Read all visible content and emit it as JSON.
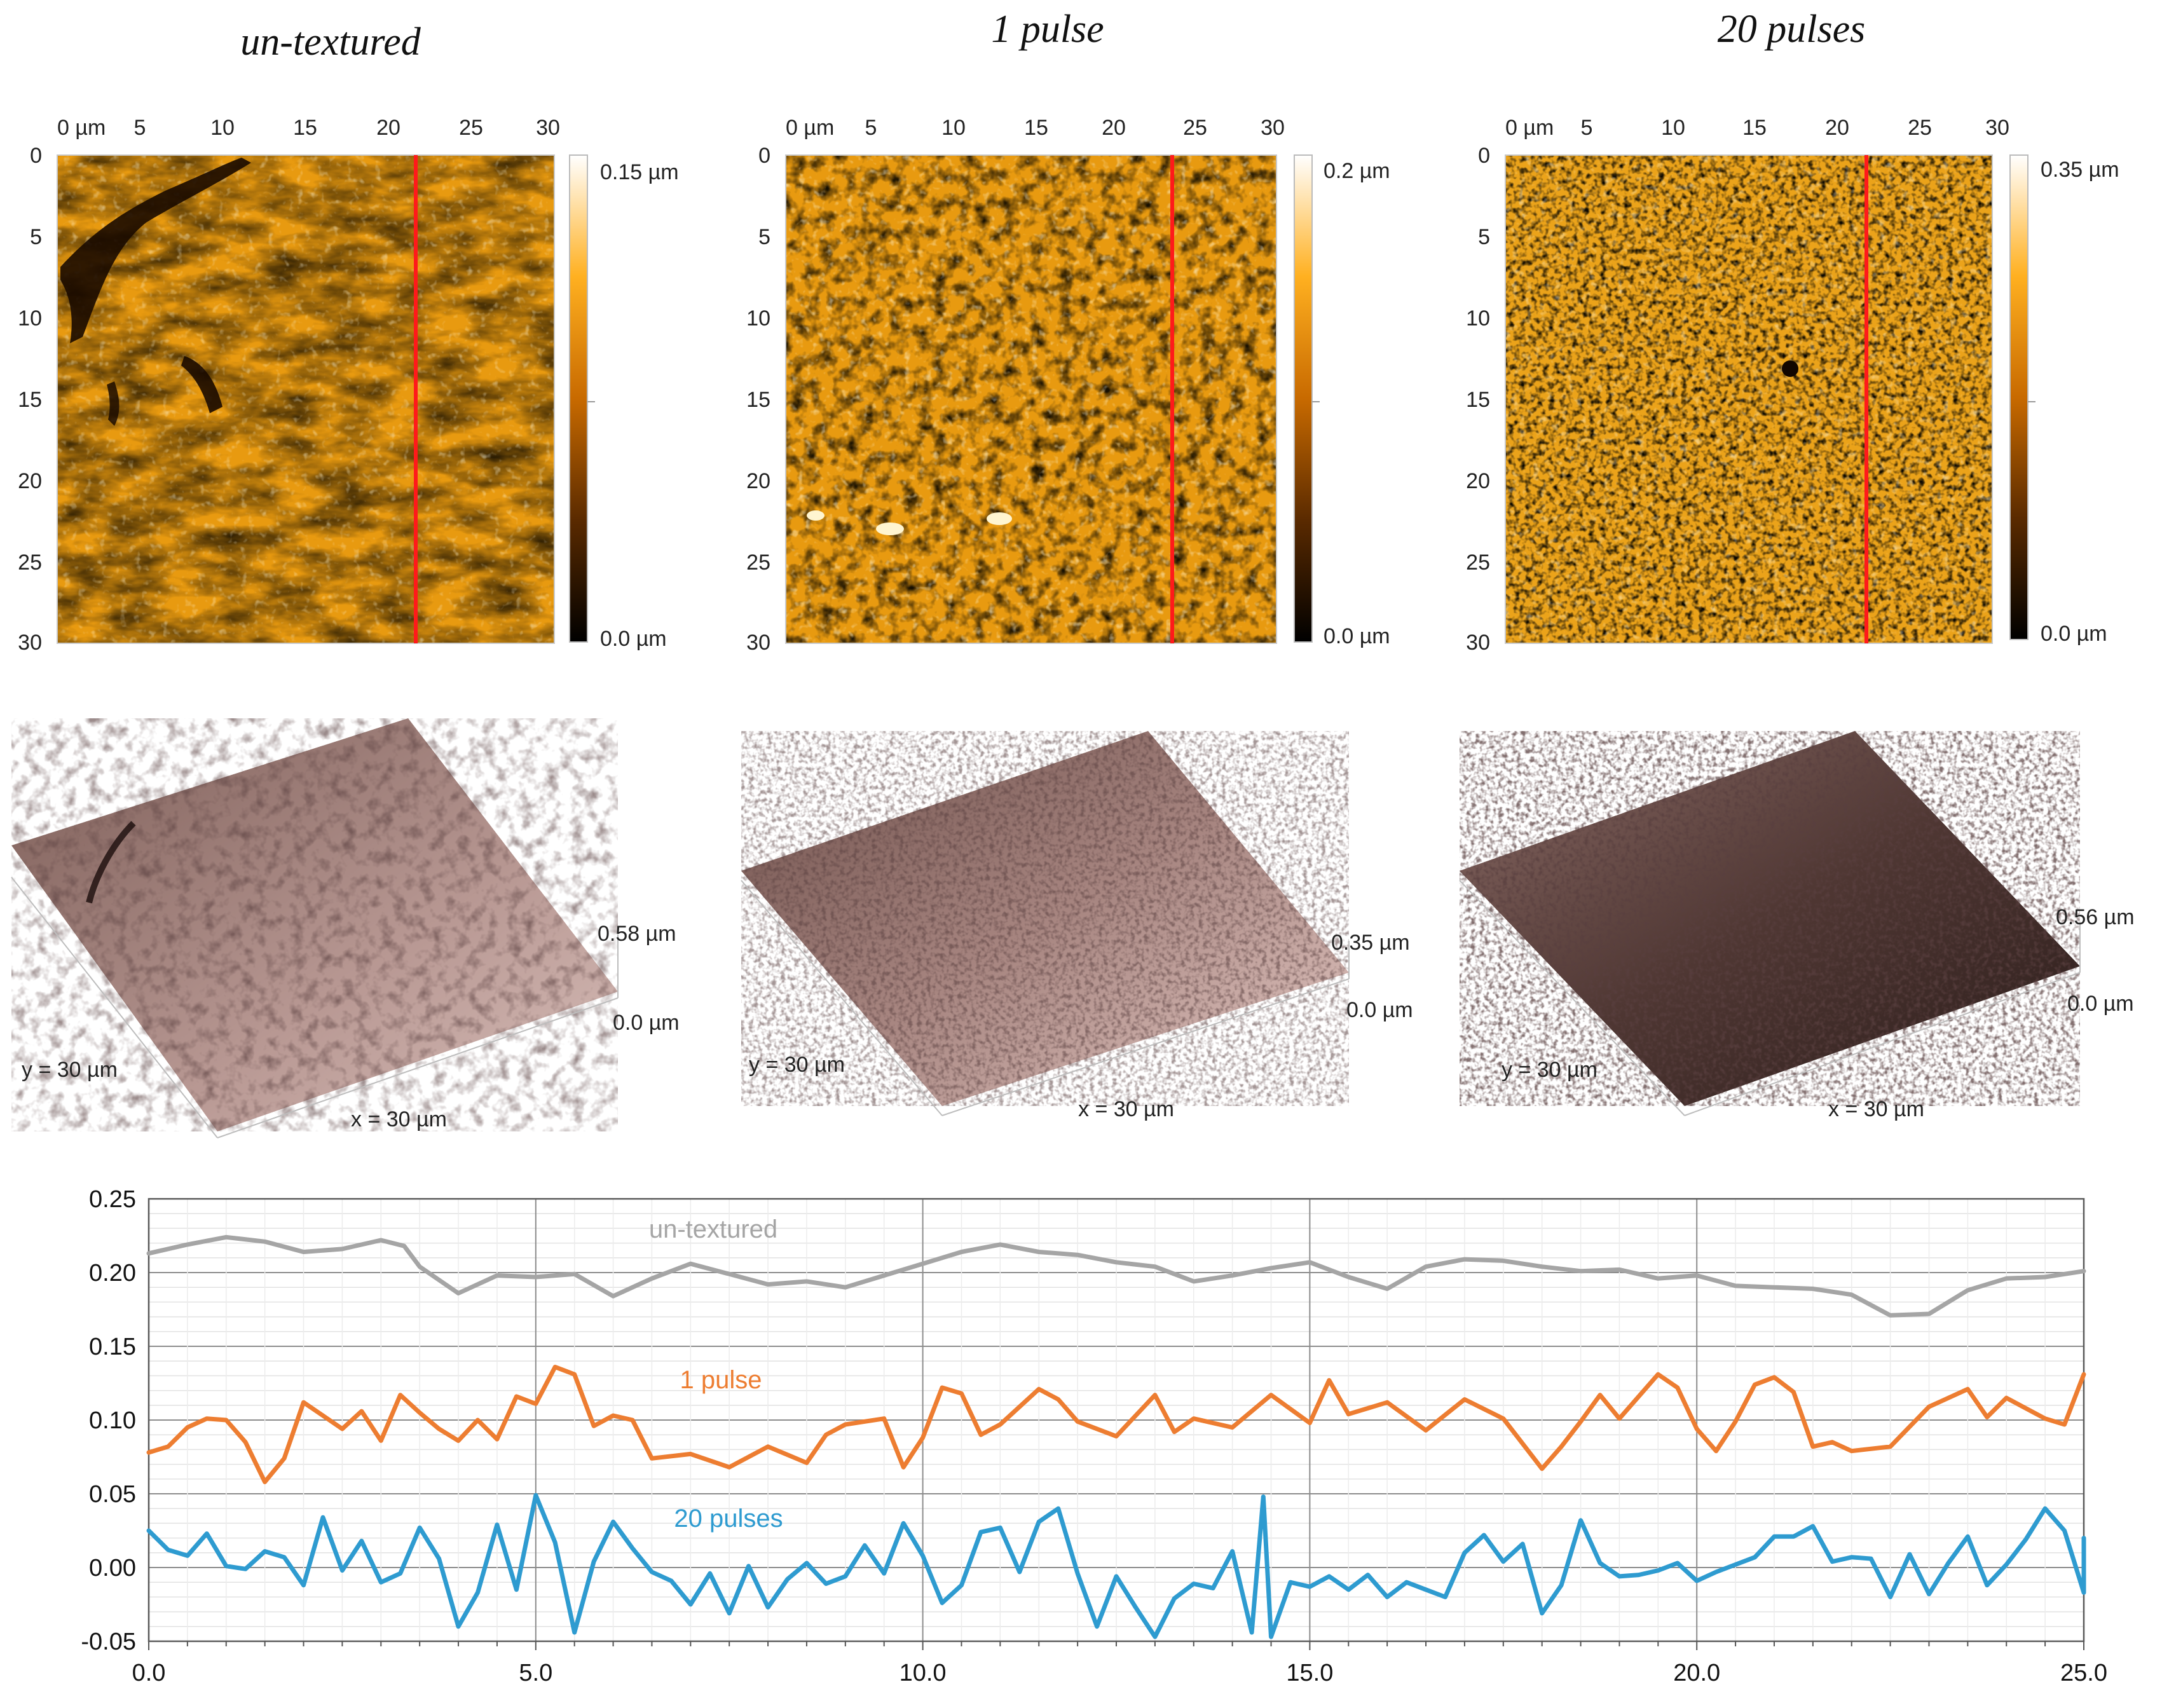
{
  "titles": [
    "un-textured",
    "1 pulse",
    "20 pulses"
  ],
  "afm_maps": [
    {
      "name": "un-textured",
      "x_ticks": [
        "0 µm",
        "5",
        "10",
        "15",
        "20",
        "25",
        "30"
      ],
      "y_ticks": [
        "0",
        "5",
        "10",
        "15",
        "20",
        "25",
        "30"
      ],
      "scale_max": "0.15 µm",
      "scale_min": "0.0 µm",
      "profile_line_x_um": 21.8
    },
    {
      "name": "1 pulse",
      "x_ticks": [
        "0 µm",
        "5",
        "10",
        "15",
        "20",
        "25",
        "30"
      ],
      "y_ticks": [
        "0",
        "5",
        "10",
        "15",
        "20",
        "25",
        "30"
      ],
      "scale_max": "0.2 µm",
      "scale_min": "0.0 µm",
      "profile_line_x_um": 23.5
    },
    {
      "name": "20 pulses",
      "x_ticks": [
        "0 µm",
        "5",
        "10",
        "15",
        "20",
        "25",
        "30"
      ],
      "y_ticks": [
        "0",
        "5",
        "10",
        "15",
        "20",
        "25",
        "30"
      ],
      "scale_max": "0.35 µm",
      "scale_min": "0.0 µm",
      "profile_line_x_um": 21.8
    }
  ],
  "views_3d": [
    {
      "name": "un-textured",
      "z_max": "0.58 µm",
      "z_min": "0.0 µm",
      "y_label": "y = 30 µm",
      "x_label": "x = 30 µm"
    },
    {
      "name": "1 pulse",
      "z_max": "0.35 µm",
      "z_min": "0.0 µm",
      "y_label": "y = 30 µm",
      "x_label": "x = 30 µm"
    },
    {
      "name": "20 pulses",
      "z_max": "0.56 µm",
      "z_min": "0.0 µm",
      "y_label": "y = 30 µm",
      "x_label": "x = 30 µm"
    }
  ],
  "colors": {
    "untextured": "#a5a5a5",
    "pulse1": "#ed7d31",
    "pulse20": "#2e9bd0",
    "profile_line": "#ff1a1a"
  },
  "chart_data": {
    "type": "line",
    "title": "",
    "xlabel": "",
    "ylabel": "",
    "xlim": [
      0,
      25
    ],
    "ylim": [
      -0.05,
      0.25
    ],
    "x_ticks": [
      "0.0",
      "5.0",
      "10.0",
      "15.0",
      "20.0",
      "25.0"
    ],
    "y_ticks": [
      "-0.05",
      "0.00",
      "0.05",
      "0.10",
      "0.15",
      "0.20",
      "0.25"
    ],
    "series": [
      {
        "name": "un-textured",
        "label": "un-textured",
        "color": "#a5a5a5",
        "points": [
          [
            0,
            0.213
          ],
          [
            0.5,
            0.219
          ],
          [
            1,
            0.224
          ],
          [
            1.5,
            0.221
          ],
          [
            2,
            0.214
          ],
          [
            2.5,
            0.216
          ],
          [
            3,
            0.222
          ],
          [
            3.3,
            0.218
          ],
          [
            3.5,
            0.204
          ],
          [
            4,
            0.186
          ],
          [
            4.5,
            0.198
          ],
          [
            5,
            0.197
          ],
          [
            5.5,
            0.199
          ],
          [
            6,
            0.184
          ],
          [
            6.5,
            0.196
          ],
          [
            7,
            0.206
          ],
          [
            7.5,
            0.199
          ],
          [
            8,
            0.192
          ],
          [
            8.5,
            0.194
          ],
          [
            9,
            0.19
          ],
          [
            9.5,
            0.198
          ],
          [
            10,
            0.206
          ],
          [
            10.5,
            0.214
          ],
          [
            11,
            0.219
          ],
          [
            11.5,
            0.214
          ],
          [
            12,
            0.212
          ],
          [
            12.5,
            0.207
          ],
          [
            13,
            0.204
          ],
          [
            13.5,
            0.194
          ],
          [
            14,
            0.198
          ],
          [
            14.5,
            0.203
          ],
          [
            15,
            0.207
          ],
          [
            15.5,
            0.197
          ],
          [
            16,
            0.189
          ],
          [
            16.5,
            0.204
          ],
          [
            17,
            0.209
          ],
          [
            17.5,
            0.208
          ],
          [
            18,
            0.204
          ],
          [
            18.5,
            0.201
          ],
          [
            19,
            0.202
          ],
          [
            19.5,
            0.196
          ],
          [
            20,
            0.198
          ],
          [
            20.5,
            0.191
          ],
          [
            21,
            0.19
          ],
          [
            21.5,
            0.189
          ],
          [
            22,
            0.185
          ],
          [
            22.5,
            0.171
          ],
          [
            23,
            0.172
          ],
          [
            23.5,
            0.188
          ],
          [
            24,
            0.196
          ],
          [
            24.5,
            0.197
          ],
          [
            25,
            0.201
          ]
        ]
      },
      {
        "name": "1 pulse",
        "label": "1 pulse",
        "color": "#ed7d31",
        "points": [
          [
            0,
            0.078
          ],
          [
            0.25,
            0.082
          ],
          [
            0.5,
            0.095
          ],
          [
            0.75,
            0.101
          ],
          [
            1,
            0.1
          ],
          [
            1.25,
            0.085
          ],
          [
            1.5,
            0.058
          ],
          [
            1.75,
            0.074
          ],
          [
            2,
            0.112
          ],
          [
            2.25,
            0.103
          ],
          [
            2.5,
            0.094
          ],
          [
            2.75,
            0.106
          ],
          [
            3,
            0.086
          ],
          [
            3.25,
            0.117
          ],
          [
            3.5,
            0.105
          ],
          [
            3.75,
            0.094
          ],
          [
            4,
            0.086
          ],
          [
            4.25,
            0.1
          ],
          [
            4.5,
            0.087
          ],
          [
            4.75,
            0.116
          ],
          [
            5,
            0.111
          ],
          [
            5.25,
            0.136
          ],
          [
            5.5,
            0.131
          ],
          [
            5.75,
            0.096
          ],
          [
            6,
            0.103
          ],
          [
            6.25,
            0.1
          ],
          [
            6.5,
            0.074
          ],
          [
            7,
            0.077
          ],
          [
            7.5,
            0.068
          ],
          [
            8,
            0.082
          ],
          [
            8.5,
            0.071
          ],
          [
            8.75,
            0.09
          ],
          [
            9,
            0.097
          ],
          [
            9.5,
            0.101
          ],
          [
            9.75,
            0.068
          ],
          [
            10,
            0.088
          ],
          [
            10.25,
            0.122
          ],
          [
            10.5,
            0.118
          ],
          [
            10.75,
            0.09
          ],
          [
            11,
            0.097
          ],
          [
            11.5,
            0.121
          ],
          [
            11.75,
            0.114
          ],
          [
            12,
            0.099
          ],
          [
            12.5,
            0.089
          ],
          [
            13,
            0.117
          ],
          [
            13.25,
            0.092
          ],
          [
            13.5,
            0.101
          ],
          [
            14,
            0.095
          ],
          [
            14.5,
            0.117
          ],
          [
            15,
            0.098
          ],
          [
            15.25,
            0.127
          ],
          [
            15.5,
            0.104
          ],
          [
            16,
            0.112
          ],
          [
            16.5,
            0.093
          ],
          [
            17,
            0.114
          ],
          [
            17.5,
            0.101
          ],
          [
            18,
            0.067
          ],
          [
            18.25,
            0.082
          ],
          [
            18.5,
            0.099
          ],
          [
            18.75,
            0.117
          ],
          [
            19,
            0.101
          ],
          [
            19.5,
            0.131
          ],
          [
            19.75,
            0.122
          ],
          [
            20,
            0.094
          ],
          [
            20.25,
            0.079
          ],
          [
            20.5,
            0.099
          ],
          [
            20.75,
            0.124
          ],
          [
            21,
            0.129
          ],
          [
            21.25,
            0.119
          ],
          [
            21.5,
            0.082
          ],
          [
            21.75,
            0.085
          ],
          [
            22,
            0.079
          ],
          [
            22.5,
            0.082
          ],
          [
            23,
            0.109
          ],
          [
            23.5,
            0.121
          ],
          [
            23.75,
            0.102
          ],
          [
            24,
            0.115
          ],
          [
            24.5,
            0.101
          ],
          [
            24.75,
            0.097
          ],
          [
            25,
            0.131
          ]
        ]
      },
      {
        "name": "20 pulses",
        "label": "20 pulses",
        "color": "#2e9bd0",
        "points": [
          [
            0,
            0.025
          ],
          [
            0.25,
            0.012
          ],
          [
            0.5,
            0.008
          ],
          [
            0.75,
            0.023
          ],
          [
            1,
            0.001
          ],
          [
            1.25,
            -0.001
          ],
          [
            1.5,
            0.011
          ],
          [
            1.75,
            0.007
          ],
          [
            2,
            -0.012
          ],
          [
            2.25,
            0.034
          ],
          [
            2.5,
            -0.002
          ],
          [
            2.75,
            0.018
          ],
          [
            3,
            -0.01
          ],
          [
            3.25,
            -0.004
          ],
          [
            3.5,
            0.027
          ],
          [
            3.75,
            0.006
          ],
          [
            4,
            -0.04
          ],
          [
            4.25,
            -0.017
          ],
          [
            4.5,
            0.029
          ],
          [
            4.75,
            -0.015
          ],
          [
            5,
            0.049
          ],
          [
            5.25,
            0.017
          ],
          [
            5.5,
            -0.044
          ],
          [
            5.75,
            0.004
          ],
          [
            6,
            0.031
          ],
          [
            6.25,
            0.013
          ],
          [
            6.5,
            -0.003
          ],
          [
            6.75,
            -0.009
          ],
          [
            7,
            -0.025
          ],
          [
            7.25,
            -0.004
          ],
          [
            7.5,
            -0.031
          ],
          [
            7.75,
            0.001
          ],
          [
            8,
            -0.027
          ],
          [
            8.25,
            -0.008
          ],
          [
            8.5,
            0.003
          ],
          [
            8.75,
            -0.011
          ],
          [
            9,
            -0.006
          ],
          [
            9.25,
            0.015
          ],
          [
            9.5,
            -0.004
          ],
          [
            9.75,
            0.03
          ],
          [
            10,
            0.008
          ],
          [
            10.25,
            -0.024
          ],
          [
            10.5,
            -0.012
          ],
          [
            10.75,
            0.024
          ],
          [
            11,
            0.027
          ],
          [
            11.25,
            -0.003
          ],
          [
            11.5,
            0.031
          ],
          [
            11.75,
            0.04
          ],
          [
            12,
            -0.004
          ],
          [
            12.25,
            -0.04
          ],
          [
            12.5,
            -0.006
          ],
          [
            12.75,
            -0.027
          ],
          [
            13,
            -0.047
          ],
          [
            13.25,
            -0.021
          ],
          [
            13.5,
            -0.011
          ],
          [
            13.75,
            -0.014
          ],
          [
            14,
            0.011
          ],
          [
            14.25,
            -0.044
          ],
          [
            14.4,
            0.048
          ],
          [
            14.5,
            -0.047
          ],
          [
            14.75,
            -0.01
          ],
          [
            15,
            -0.013
          ],
          [
            15.25,
            -0.006
          ],
          [
            15.5,
            -0.015
          ],
          [
            15.75,
            -0.005
          ],
          [
            16,
            -0.02
          ],
          [
            16.25,
            -0.01
          ],
          [
            16.5,
            -0.015
          ],
          [
            16.75,
            -0.02
          ],
          [
            17,
            0.01
          ],
          [
            17.25,
            0.022
          ],
          [
            17.5,
            0.004
          ],
          [
            17.75,
            0.016
          ],
          [
            18,
            -0.031
          ],
          [
            18.25,
            -0.012
          ],
          [
            18.5,
            0.032
          ],
          [
            18.75,
            0.003
          ],
          [
            19,
            -0.006
          ],
          [
            19.25,
            -0.005
          ],
          [
            19.5,
            -0.002
          ],
          [
            19.75,
            0.003
          ],
          [
            20,
            -0.009
          ],
          [
            20.25,
            -0.003
          ],
          [
            20.5,
            0.002
          ],
          [
            20.75,
            0.007
          ],
          [
            21,
            0.021
          ],
          [
            21.25,
            0.021
          ],
          [
            21.5,
            0.028
          ],
          [
            21.75,
            0.004
          ],
          [
            22,
            0.007
          ],
          [
            22.25,
            0.006
          ],
          [
            22.5,
            -0.02
          ],
          [
            22.75,
            0.009
          ],
          [
            23,
            -0.018
          ],
          [
            23.25,
            0.003
          ],
          [
            23.5,
            0.021
          ],
          [
            23.75,
            -0.012
          ],
          [
            24,
            0.002
          ],
          [
            24.25,
            0.019
          ],
          [
            24.5,
            0.04
          ],
          [
            24.75,
            0.025
          ],
          [
            25,
            -0.017
          ],
          [
            25,
            0.02
          ]
        ]
      }
    ]
  }
}
